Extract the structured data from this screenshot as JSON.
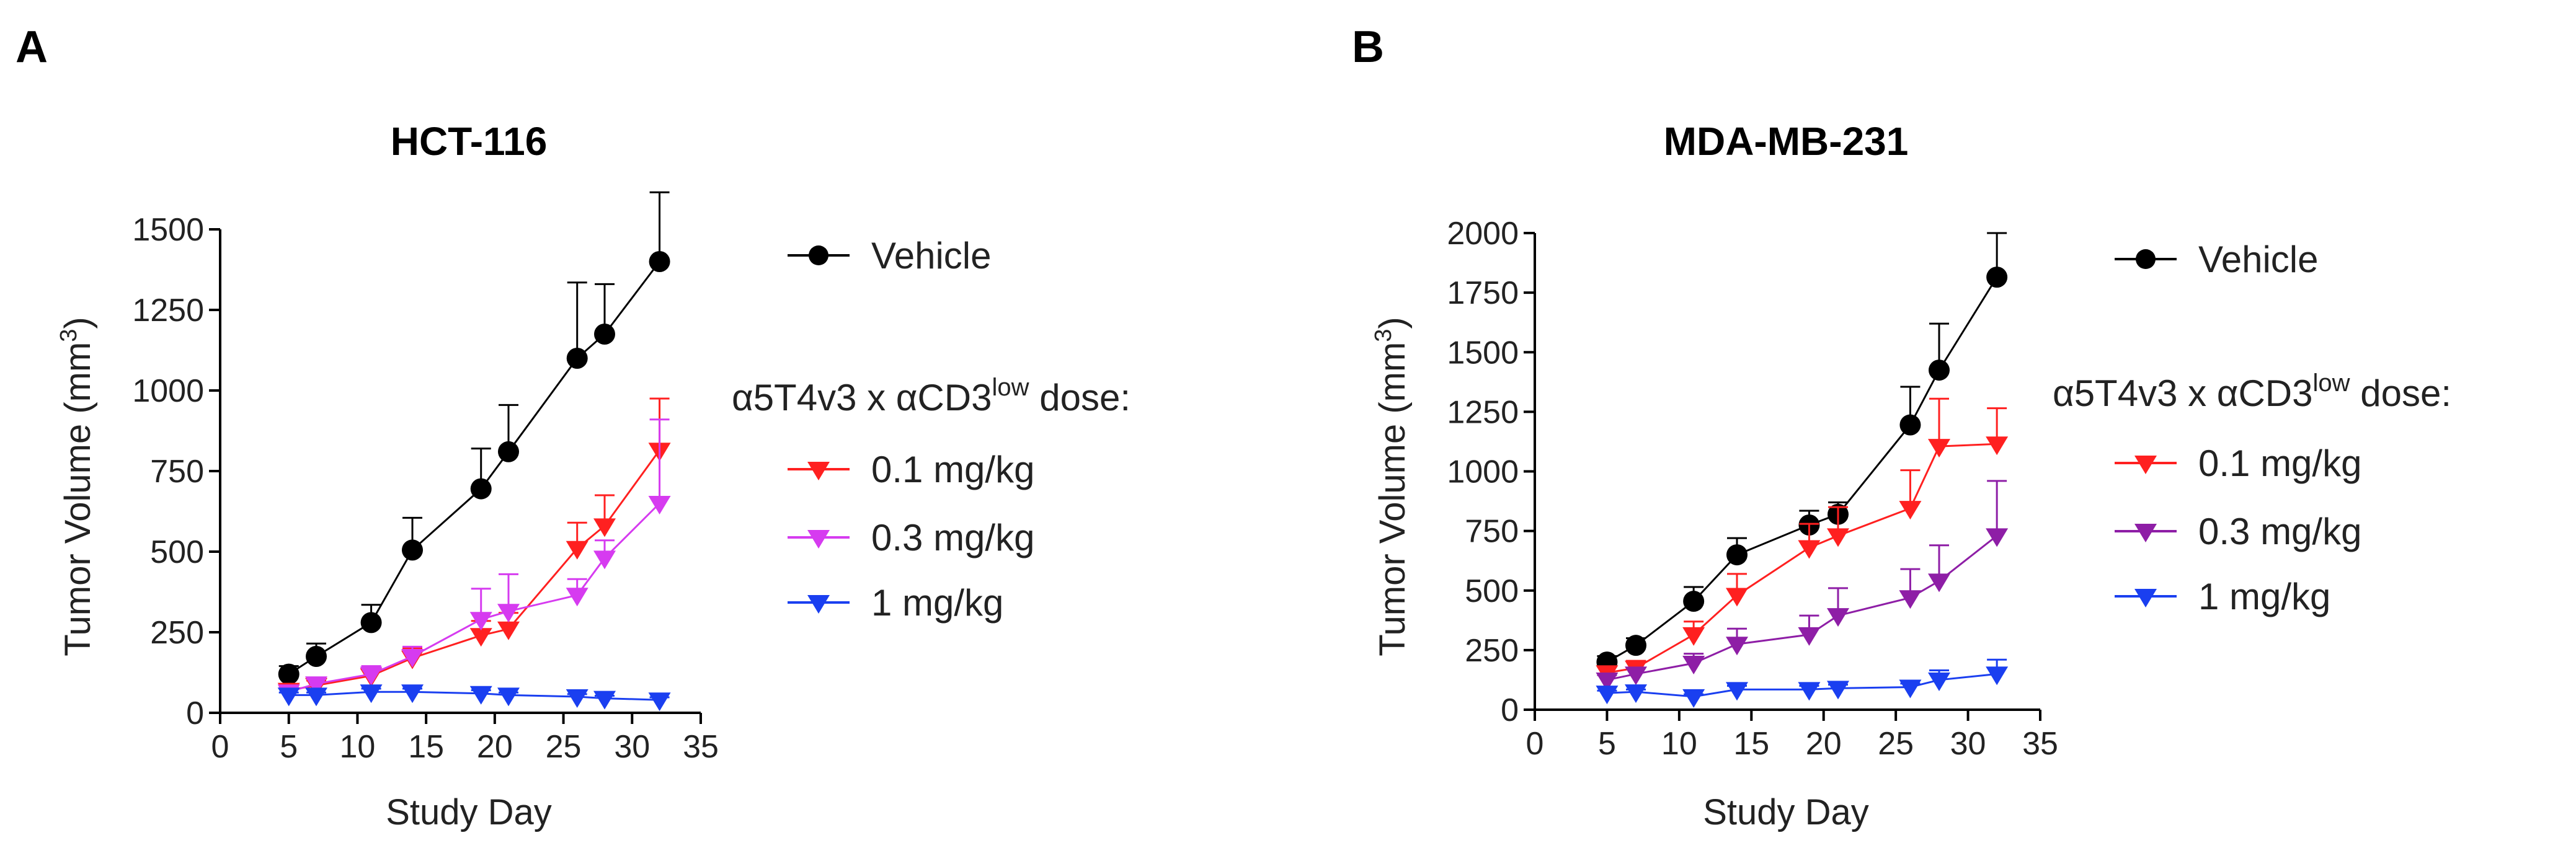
{
  "chart_data": [
    {
      "panel": "A",
      "type": "line",
      "title": "HCT-116",
      "xlabel": "Study Day",
      "ylabel": "Tumor Volume (mm3)",
      "ylabel_parts": {
        "main": "Tumor Volume (mm",
        "sup": "3",
        "close": ")"
      },
      "xlim": [
        0,
        35
      ],
      "ylim": [
        0,
        1500
      ],
      "xticks": [
        0,
        5,
        10,
        15,
        20,
        25,
        30,
        35
      ],
      "yticks": [
        0,
        250,
        500,
        750,
        1000,
        1250,
        1500
      ],
      "legend_header": {
        "main": "α5T4v3 x αCD3",
        "sup": "low",
        "tail": " dose:"
      },
      "series": [
        {
          "name": "Vehicle",
          "color": "#000000",
          "marker": "circle",
          "x": [
            5,
            7,
            11,
            14,
            19,
            21,
            26,
            28,
            32
          ],
          "y": [
            120,
            175,
            280,
            505,
            695,
            810,
            1100,
            1175,
            1400
          ],
          "err": [
            25,
            40,
            55,
            100,
            125,
            145,
            235,
            155,
            215
          ]
        },
        {
          "name": "0.1 mg/kg",
          "color": "#ff2020",
          "marker": "triangle-down",
          "x": [
            5,
            7,
            11,
            14,
            19,
            21,
            26,
            28,
            32
          ],
          "y": [
            70,
            85,
            115,
            170,
            240,
            260,
            510,
            580,
            815
          ],
          "err": [
            12,
            15,
            25,
            30,
            45,
            50,
            80,
            95,
            160
          ]
        },
        {
          "name": "0.3 mg/kg",
          "color": "#d63bf0",
          "marker": "triangle-down",
          "x": [
            5,
            7,
            11,
            14,
            19,
            21,
            26,
            28,
            32
          ],
          "y": [
            65,
            90,
            120,
            175,
            290,
            315,
            365,
            480,
            650
          ],
          "err": [
            12,
            15,
            25,
            30,
            95,
            115,
            50,
            55,
            260
          ]
        },
        {
          "name": "1 mg/kg",
          "color": "#1a3ff0",
          "marker": "triangle-down",
          "x": [
            5,
            7,
            11,
            14,
            19,
            21,
            26,
            28,
            32
          ],
          "y": [
            55,
            55,
            65,
            65,
            60,
            55,
            50,
            45,
            40
          ],
          "err": [
            8,
            8,
            10,
            10,
            10,
            8,
            8,
            8,
            8
          ]
        }
      ]
    },
    {
      "panel": "B",
      "type": "line",
      "title": "MDA-MB-231",
      "xlabel": "Study Day",
      "ylabel": "Tumor Volume (mm3)",
      "ylabel_parts": {
        "main": "Tumor Volume (mm",
        "sup": "3",
        "close": ")"
      },
      "xlim": [
        0,
        35
      ],
      "ylim": [
        0,
        2000
      ],
      "xticks": [
        0,
        5,
        10,
        15,
        20,
        25,
        30,
        35
      ],
      "yticks": [
        0,
        250,
        500,
        750,
        1000,
        1250,
        1500,
        1750,
        2000
      ],
      "legend_header": {
        "main": "α5T4v3 x αCD3",
        "sup": "low",
        "tail": " dose:"
      },
      "series": [
        {
          "name": "Vehicle",
          "color": "#000000",
          "marker": "circle",
          "x": [
            5,
            7,
            11,
            14,
            19,
            21,
            26,
            28,
            32
          ],
          "y": [
            200,
            270,
            455,
            650,
            775,
            820,
            1195,
            1425,
            1815
          ],
          "err": [
            25,
            30,
            60,
            70,
            60,
            50,
            160,
            195,
            185
          ]
        },
        {
          "name": "0.1 mg/kg",
          "color": "#ff2020",
          "marker": "triangle-down",
          "x": [
            5,
            7,
            11,
            14,
            19,
            21,
            26,
            28,
            32
          ],
          "y": [
            155,
            175,
            315,
            480,
            680,
            730,
            845,
            1105,
            1115
          ],
          "err": [
            25,
            30,
            55,
            90,
            100,
            120,
            160,
            200,
            150
          ]
        },
        {
          "name": "0.3 mg/kg",
          "color": "#8e1ea6",
          "marker": "triangle-down",
          "x": [
            5,
            7,
            11,
            14,
            19,
            21,
            26,
            28,
            32
          ],
          "y": [
            125,
            150,
            195,
            275,
            315,
            395,
            470,
            540,
            730
          ],
          "err": [
            20,
            25,
            40,
            65,
            80,
            115,
            120,
            150,
            230
          ]
        },
        {
          "name": "1 mg/kg",
          "color": "#1a3ff0",
          "marker": "triangle-down",
          "x": [
            5,
            7,
            11,
            14,
            19,
            21,
            26,
            28,
            32
          ],
          "y": [
            70,
            75,
            55,
            85,
            85,
            90,
            95,
            125,
            150
          ],
          "err": [
            10,
            10,
            10,
            15,
            15,
            15,
            15,
            40,
            60
          ]
        }
      ]
    }
  ]
}
